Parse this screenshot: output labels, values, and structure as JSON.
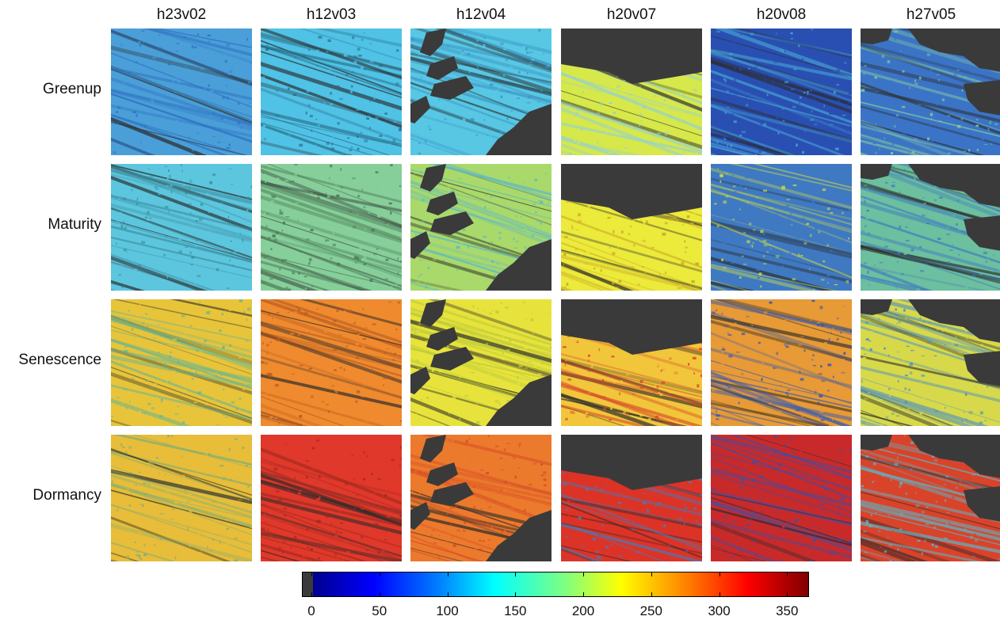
{
  "columns": [
    "h23v02",
    "h12v03",
    "h12v04",
    "h20v07",
    "h20v08",
    "h27v05"
  ],
  "rows": [
    "Greenup",
    "Maturity",
    "Senescence",
    "Dormancy"
  ],
  "colorbar": {
    "ticks": [
      "0",
      "50",
      "100",
      "150",
      "200",
      "250",
      "300",
      "350"
    ],
    "min": 0,
    "max": 365,
    "colormap": "jet",
    "nodata_color": "#3a3a3a"
  },
  "tiles": [
    [
      {
        "base": "#4a9fd8",
        "accent": "#2e6fc0",
        "mask": "none"
      },
      {
        "base": "#4fc2e6",
        "accent": "#2a6e86",
        "mask": "none"
      },
      {
        "base": "#57c7e4",
        "accent": "#3b8fbf",
        "mask": "lakes_se"
      },
      {
        "base": "#d7e84a",
        "accent": "#8fd0d9",
        "mask": "top"
      },
      {
        "base": "#2a4fb2",
        "accent": "#4ab0d8",
        "mask": "none"
      },
      {
        "base": "#3b74c6",
        "accent": "#86c9a0",
        "mask": "blobs"
      }
    ],
    [
      {
        "base": "#5cc6de",
        "accent": "#3b8a9a",
        "mask": "none"
      },
      {
        "base": "#86cf9a",
        "accent": "#4a7a55",
        "mask": "none"
      },
      {
        "base": "#a9d96a",
        "accent": "#5db7c9",
        "mask": "lakes_se"
      },
      {
        "base": "#ecea3a",
        "accent": "#c9a526",
        "mask": "top"
      },
      {
        "base": "#3f79c2",
        "accent": "#c7d84a",
        "mask": "none"
      },
      {
        "base": "#6cbf9f",
        "accent": "#3d78c0",
        "mask": "blobs"
      }
    ],
    [
      {
        "base": "#e8c43a",
        "accent": "#6ab68f",
        "mask": "none"
      },
      {
        "base": "#ef8a2e",
        "accent": "#b35a20",
        "mask": "none"
      },
      {
        "base": "#e8e33c",
        "accent": "#b9c93a",
        "mask": "lakes_se"
      },
      {
        "base": "#f2c63a",
        "accent": "#d5452b",
        "mask": "top"
      },
      {
        "base": "#e79a35",
        "accent": "#3659b3",
        "mask": "none"
      },
      {
        "base": "#d7d94a",
        "accent": "#4b8ec4",
        "mask": "blobs"
      }
    ],
    [
      {
        "base": "#e8bd3a",
        "accent": "#7fae72",
        "mask": "none"
      },
      {
        "base": "#e0382a",
        "accent": "#9e2a20",
        "mask": "none"
      },
      {
        "base": "#ec7a2c",
        "accent": "#d44a26",
        "mask": "lakes_se"
      },
      {
        "base": "#dd3326",
        "accent": "#3f7ec0",
        "mask": "top"
      },
      {
        "base": "#c82a2a",
        "accent": "#3151b3",
        "mask": "none"
      },
      {
        "base": "#d9432a",
        "accent": "#5bb6c9",
        "mask": "blobs"
      }
    ]
  ]
}
